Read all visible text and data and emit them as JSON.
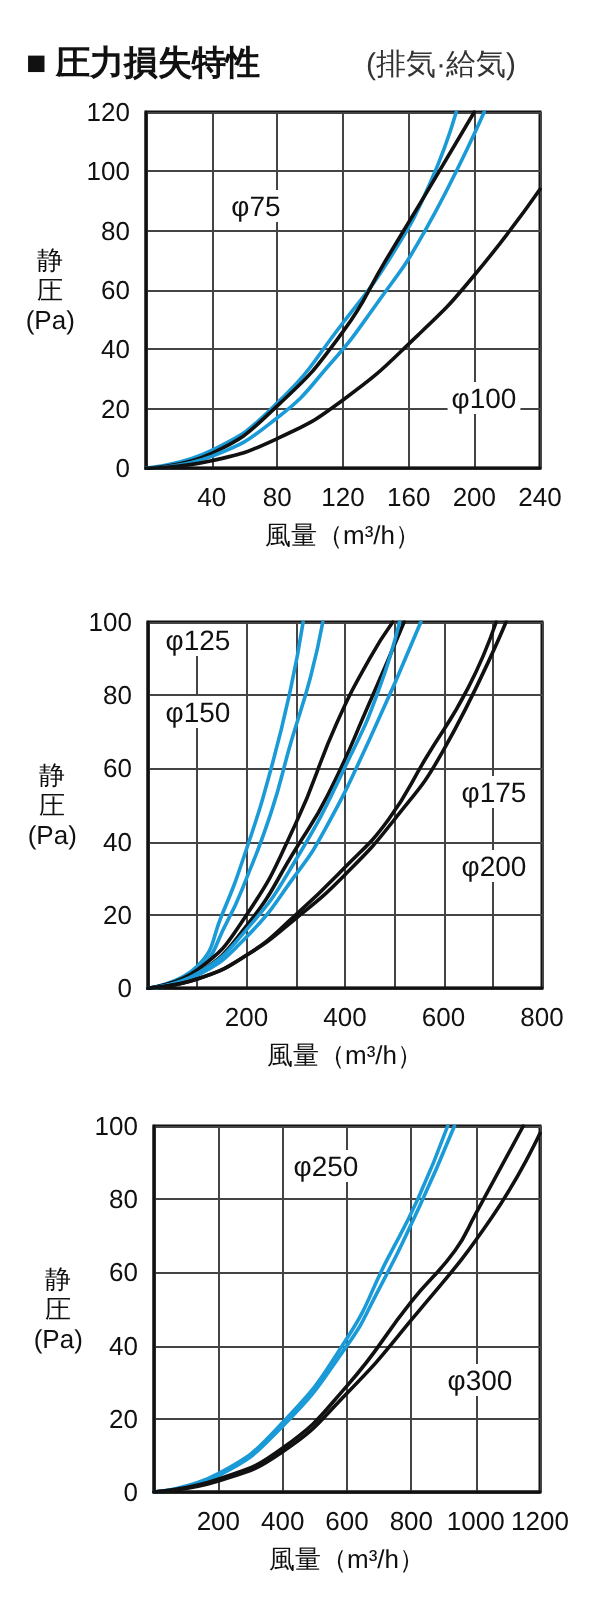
{
  "chart_data": [
    {
      "type": "line",
      "title": "■ 圧力損失特性",
      "subtitle": "(排気·給気)",
      "xlabel": "風量（m³/h）",
      "ylabel": "静圧(Pa)",
      "xlim": [
        0,
        240
      ],
      "ylim": [
        0,
        120
      ],
      "xticks": [
        {
          "value": 0,
          "label": null
        },
        40,
        80,
        120,
        160,
        200,
        240
      ],
      "yticks": [
        0,
        20,
        40,
        60,
        80,
        100,
        120
      ],
      "grid": true,
      "marker": "none",
      "line_style": "solid",
      "series": [
        {
          "color": "#1a9ad6",
          "x": [
            0,
            40,
            80,
            120,
            150,
            173,
            189
          ],
          "values": [
            0,
            6,
            22,
            49,
            72,
            96,
            120
          ]
        },
        {
          "color": "#111111",
          "x": [
            0,
            40,
            80,
            120,
            146,
            170,
            200
          ],
          "values": [
            0,
            5,
            21,
            46,
            70,
            92,
            120
          ]
        },
        {
          "color": "#1a9ad6",
          "x": [
            0,
            40,
            80,
            112,
            140,
            170,
            206
          ],
          "values": [
            0,
            4,
            17,
            35,
            55,
            80,
            120
          ]
        },
        {
          "color": "#111111",
          "x": [
            0,
            40,
            80,
            120,
            166,
            200,
            240
          ],
          "values": [
            0,
            2.5,
            10,
            23,
            45,
            65,
            94
          ]
        }
      ],
      "annotations": [
        "φ75",
        "φ100"
      ]
    },
    {
      "type": "line",
      "xlabel": "風量（m³/h）",
      "ylabel": "静圧(Pa)",
      "xlim": [
        0,
        800
      ],
      "ylim": [
        0,
        100
      ],
      "xticks": [
        {
          "value": 0,
          "label": null
        },
        {
          "value": 100,
          "label": null
        },
        200,
        {
          "value": 300,
          "label": null
        },
        400,
        {
          "value": 500,
          "label": null
        },
        600,
        {
          "value": 700,
          "label": null
        },
        800
      ],
      "yticks": [
        0,
        20,
        40,
        60,
        80,
        100
      ],
      "grid": true,
      "marker": "none",
      "line_style": "solid",
      "series": [
        {
          "color": "#1a9ad6",
          "x": [
            0,
            100,
            150,
            200,
            250,
            290,
            315
          ],
          "values": [
            0,
            6,
            20,
            38,
            60,
            82,
            100
          ]
        },
        {
          "color": "#1a9ad6",
          "x": [
            0,
            100,
            160,
            200,
            250,
            290,
            330,
            355
          ],
          "values": [
            0,
            5,
            18,
            30,
            48,
            67,
            85,
            100
          ]
        },
        {
          "color": "#111111",
          "x": [
            0,
            100,
            200,
            300,
            382,
            450,
            497
          ],
          "values": [
            0,
            5,
            20,
            45,
            72,
            90,
            100
          ]
        },
        {
          "color": "#111111",
          "x": [
            0,
            100,
            200,
            300,
            366,
            450,
            520
          ],
          "values": [
            0,
            4,
            17,
            38,
            53,
            78,
            100
          ]
        },
        {
          "color": "#1a9ad6",
          "x": [
            0,
            100,
            200,
            300,
            413,
            470,
            511
          ],
          "values": [
            0,
            4,
            16,
            35,
            64,
            82,
            100
          ]
        },
        {
          "color": "#1a9ad6",
          "x": [
            0,
            100,
            200,
            300,
            358,
            450,
            554
          ],
          "values": [
            0,
            3.5,
            14,
            31,
            43,
            68,
            100
          ]
        },
        {
          "color": "#111111",
          "x": [
            0,
            100,
            200,
            300,
            400,
            488,
            565,
            650,
            707
          ],
          "values": [
            0,
            2.5,
            9,
            20,
            33,
            46,
            63,
            82,
            100
          ]
        },
        {
          "color": "#111111",
          "x": [
            0,
            100,
            200,
            300,
            400,
            500,
            600,
            727
          ],
          "values": [
            0,
            2.5,
            9,
            19,
            31,
            46,
            65,
            100
          ]
        }
      ],
      "annotations": [
        "φ125",
        "φ150",
        "φ175",
        "φ200"
      ]
    },
    {
      "type": "line",
      "xlabel": "風量（m³/h）",
      "ylabel": "静圧(Pa)",
      "xlim": [
        0,
        1200
      ],
      "ylim": [
        0,
        100
      ],
      "xticks": [
        {
          "value": 0,
          "label": null
        },
        200,
        400,
        600,
        800,
        1000,
        1200
      ],
      "yticks": [
        0,
        20,
        40,
        60,
        80,
        100
      ],
      "grid": true,
      "marker": "none",
      "line_style": "solid",
      "series": [
        {
          "color": "#1a9ad6",
          "x": [
            0,
            200,
            400,
            600,
            722,
            820,
            913
          ],
          "values": [
            0,
            5,
            19,
            42,
            63,
            80,
            100
          ]
        },
        {
          "color": "#1a9ad6",
          "x": [
            0,
            200,
            400,
            600,
            691,
            820,
            934
          ],
          "values": [
            0,
            4.5,
            18,
            40,
            54,
            77,
            100
          ]
        },
        {
          "color": "#111111",
          "x": [
            0,
            200,
            400,
            600,
            800,
            936,
            1000,
            1148
          ],
          "values": [
            0,
            3.5,
            12,
            29,
            52,
            66,
            76,
            100
          ]
        },
        {
          "color": "#111111",
          "x": [
            0,
            200,
            400,
            600,
            800,
            1050,
            1200
          ],
          "values": [
            0,
            3,
            11,
            27,
            47,
            75,
            98
          ]
        }
      ],
      "annotations": [
        "φ250",
        "φ300"
      ]
    }
  ]
}
